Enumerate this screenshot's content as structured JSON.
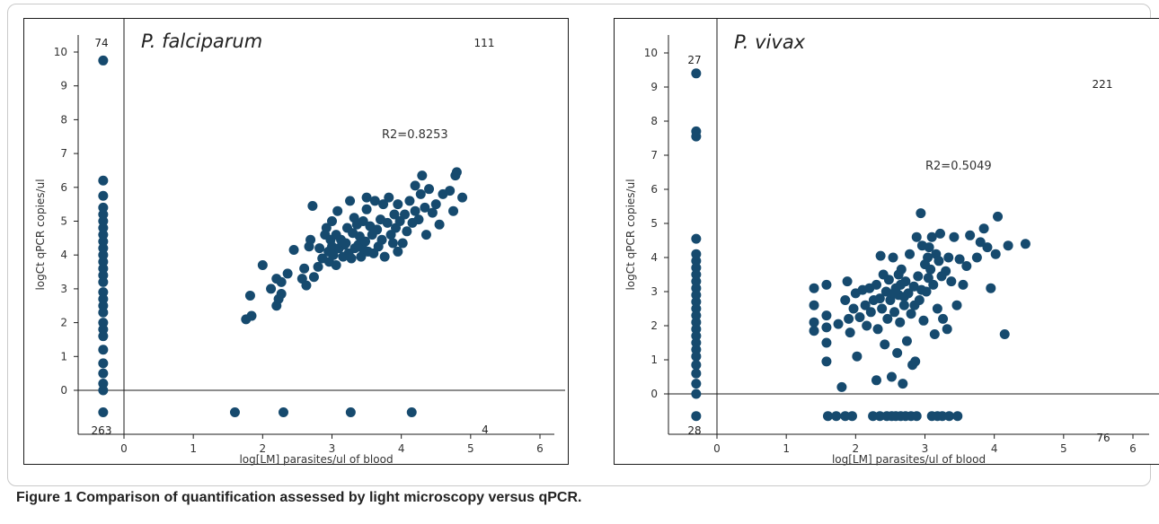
{
  "caption": {
    "label": "Figure 1",
    "text": "Comparison of quantification assessed by light microscopy versus qPCR."
  },
  "colors": {
    "point": "#164a6e",
    "axis": "#1b1b1b"
  },
  "chart_data": [
    {
      "type": "scatter",
      "species": "P. falciparum",
      "xlabel": "log[LM] parasites/ul of blood",
      "ylabel": "logCt qPCR copies/ul",
      "xlim": [
        -0.45,
        6.3
      ],
      "ylim": [
        -1.15,
        10.8
      ],
      "x_ticks": [
        0,
        1,
        2,
        3,
        4,
        5,
        6
      ],
      "y_ticks": [
        0,
        1,
        2,
        3,
        4,
        5,
        6,
        7,
        8,
        9,
        10
      ],
      "r2_label": "R2=0.8253",
      "counts": {
        "top_left": "74",
        "top_right": "111",
        "bottom_left": "263",
        "bottom_right": "4"
      },
      "x_undetected": -0.3,
      "y_undetected": -0.65,
      "points": [
        [
          -0.3,
          9.75
        ],
        [
          -0.3,
          6.2
        ],
        [
          -0.3,
          5.75
        ],
        [
          -0.3,
          5.4
        ],
        [
          -0.3,
          5.2
        ],
        [
          -0.3,
          5.0
        ],
        [
          -0.3,
          4.8
        ],
        [
          -0.3,
          4.6
        ],
        [
          -0.3,
          4.4
        ],
        [
          -0.3,
          4.2
        ],
        [
          -0.3,
          4.0
        ],
        [
          -0.3,
          3.8
        ],
        [
          -0.3,
          3.6
        ],
        [
          -0.3,
          3.4
        ],
        [
          -0.3,
          3.2
        ],
        [
          -0.3,
          2.9
        ],
        [
          -0.3,
          2.7
        ],
        [
          -0.3,
          2.5
        ],
        [
          -0.3,
          2.3
        ],
        [
          -0.3,
          2.0
        ],
        [
          -0.3,
          1.8
        ],
        [
          -0.3,
          1.6
        ],
        [
          -0.3,
          1.2
        ],
        [
          -0.3,
          0.8
        ],
        [
          -0.3,
          0.5
        ],
        [
          -0.3,
          0.2
        ],
        [
          -0.3,
          0.0
        ],
        [
          -0.3,
          -0.65
        ],
        [
          1.6,
          -0.65
        ],
        [
          2.3,
          -0.65
        ],
        [
          3.27,
          -0.65
        ],
        [
          4.15,
          -0.65
        ],
        [
          1.76,
          2.1
        ],
        [
          1.84,
          2.2
        ],
        [
          1.82,
          2.8
        ],
        [
          2.0,
          3.7
        ],
        [
          2.12,
          3.0
        ],
        [
          2.2,
          3.3
        ],
        [
          2.2,
          2.5
        ],
        [
          2.23,
          2.7
        ],
        [
          2.27,
          2.85
        ],
        [
          2.27,
          3.2
        ],
        [
          2.36,
          3.45
        ],
        [
          2.45,
          4.15
        ],
        [
          2.57,
          3.3
        ],
        [
          2.6,
          3.6
        ],
        [
          2.63,
          3.1
        ],
        [
          2.67,
          4.25
        ],
        [
          2.69,
          4.45
        ],
        [
          2.72,
          5.45
        ],
        [
          2.74,
          3.35
        ],
        [
          2.8,
          3.65
        ],
        [
          2.82,
          4.2
        ],
        [
          2.86,
          3.9
        ],
        [
          2.9,
          4.6
        ],
        [
          2.92,
          4.8
        ],
        [
          2.95,
          4.1
        ],
        [
          2.96,
          3.8
        ],
        [
          2.98,
          4.45
        ],
        [
          3.0,
          4.25
        ],
        [
          3.0,
          5.0
        ],
        [
          3.02,
          4.0
        ],
        [
          3.06,
          3.7
        ],
        [
          3.06,
          4.6
        ],
        [
          3.1,
          4.2
        ],
        [
          3.13,
          4.45
        ],
        [
          3.16,
          3.95
        ],
        [
          3.18,
          4.3
        ],
        [
          3.2,
          4.35
        ],
        [
          3.22,
          4.8
        ],
        [
          3.24,
          4.05
        ],
        [
          3.26,
          5.6
        ],
        [
          3.28,
          3.9
        ],
        [
          3.3,
          4.65
        ],
        [
          3.32,
          5.1
        ],
        [
          3.33,
          4.2
        ],
        [
          3.36,
          4.9
        ],
        [
          3.38,
          4.3
        ],
        [
          3.4,
          4.55
        ],
        [
          3.42,
          3.95
        ],
        [
          3.44,
          4.2
        ],
        [
          3.45,
          5.0
        ],
        [
          3.48,
          4.4
        ],
        [
          3.5,
          5.35
        ],
        [
          3.52,
          4.1
        ],
        [
          3.55,
          4.85
        ],
        [
          3.58,
          4.6
        ],
        [
          3.6,
          4.05
        ],
        [
          3.62,
          5.6
        ],
        [
          3.65,
          4.75
        ],
        [
          3.67,
          4.25
        ],
        [
          3.7,
          5.05
        ],
        [
          3.72,
          4.45
        ],
        [
          3.74,
          5.5
        ],
        [
          3.76,
          3.95
        ],
        [
          3.8,
          4.95
        ],
        [
          3.82,
          5.7
        ],
        [
          3.85,
          4.6
        ],
        [
          3.88,
          4.35
        ],
        [
          3.9,
          5.2
        ],
        [
          3.92,
          4.8
        ],
        [
          3.95,
          5.5
        ],
        [
          3.98,
          5.0
        ],
        [
          4.02,
          4.35
        ],
        [
          4.05,
          5.2
        ],
        [
          4.08,
          4.7
        ],
        [
          4.12,
          5.6
        ],
        [
          4.16,
          4.95
        ],
        [
          4.2,
          5.3
        ],
        [
          4.25,
          5.05
        ],
        [
          4.28,
          5.8
        ],
        [
          4.3,
          6.35
        ],
        [
          4.34,
          5.4
        ],
        [
          4.36,
          4.6
        ],
        [
          4.4,
          5.95
        ],
        [
          4.45,
          5.25
        ],
        [
          4.5,
          5.5
        ],
        [
          4.6,
          5.8
        ],
        [
          4.7,
          5.9
        ],
        [
          4.75,
          5.3
        ],
        [
          4.78,
          6.35
        ],
        [
          4.8,
          6.45
        ],
        [
          4.88,
          5.7
        ],
        [
          4.55,
          4.9
        ],
        [
          4.2,
          6.05
        ],
        [
          3.5,
          5.7
        ],
        [
          3.08,
          5.3
        ],
        [
          3.95,
          4.1
        ]
      ]
    },
    {
      "type": "scatter",
      "species": "P. vivax",
      "xlabel": "log[LM] parasites/ul of blood",
      "ylabel": "logCt qPCR copies/ul",
      "xlim": [
        -0.45,
        6.3
      ],
      "ylim": [
        -1.15,
        10.8
      ],
      "x_ticks": [
        0,
        1,
        2,
        3,
        4,
        5,
        6
      ],
      "y_ticks": [
        0,
        1,
        2,
        3,
        4,
        5,
        6,
        7,
        8,
        9,
        10
      ],
      "r2_label": "R2=0.5049",
      "counts": {
        "top_left": "27",
        "top_right": "221",
        "bottom_left": "28",
        "bottom_right": "76"
      },
      "x_undetected": -0.3,
      "y_undetected": -0.65,
      "points": [
        [
          -0.3,
          9.4
        ],
        [
          -0.3,
          7.7
        ],
        [
          -0.3,
          7.55
        ],
        [
          -0.3,
          4.55
        ],
        [
          -0.3,
          4.1
        ],
        [
          -0.3,
          3.9
        ],
        [
          -0.3,
          3.7
        ],
        [
          -0.3,
          3.5
        ],
        [
          -0.3,
          3.3
        ],
        [
          -0.3,
          3.1
        ],
        [
          -0.3,
          2.9
        ],
        [
          -0.3,
          2.7
        ],
        [
          -0.3,
          2.5
        ],
        [
          -0.3,
          2.3
        ],
        [
          -0.3,
          2.1
        ],
        [
          -0.3,
          1.9
        ],
        [
          -0.3,
          1.7
        ],
        [
          -0.3,
          1.5
        ],
        [
          -0.3,
          1.3
        ],
        [
          -0.3,
          1.1
        ],
        [
          -0.3,
          0.85
        ],
        [
          -0.3,
          0.6
        ],
        [
          -0.3,
          0.3
        ],
        [
          -0.3,
          0.0
        ],
        [
          -0.3,
          -0.65
        ],
        [
          1.6,
          -0.65
        ],
        [
          1.72,
          -0.65
        ],
        [
          1.85,
          -0.65
        ],
        [
          1.95,
          -0.65
        ],
        [
          2.25,
          -0.65
        ],
        [
          2.35,
          -0.65
        ],
        [
          2.45,
          -0.65
        ],
        [
          2.52,
          -0.65
        ],
        [
          2.58,
          -0.65
        ],
        [
          2.65,
          -0.65
        ],
        [
          2.72,
          -0.65
        ],
        [
          2.8,
          -0.65
        ],
        [
          2.88,
          -0.65
        ],
        [
          3.1,
          -0.65
        ],
        [
          3.18,
          -0.65
        ],
        [
          3.25,
          -0.65
        ],
        [
          3.35,
          -0.65
        ],
        [
          3.47,
          -0.65
        ],
        [
          1.4,
          3.1
        ],
        [
          1.4,
          2.6
        ],
        [
          1.4,
          2.1
        ],
        [
          1.4,
          1.85
        ],
        [
          1.58,
          3.2
        ],
        [
          1.58,
          2.3
        ],
        [
          1.58,
          1.95
        ],
        [
          1.58,
          1.5
        ],
        [
          1.58,
          0.95
        ],
        [
          1.75,
          2.05
        ],
        [
          1.8,
          0.2
        ],
        [
          1.85,
          2.75
        ],
        [
          1.88,
          3.3
        ],
        [
          1.9,
          2.2
        ],
        [
          1.92,
          1.8
        ],
        [
          1.97,
          2.5
        ],
        [
          2.0,
          2.95
        ],
        [
          2.02,
          1.1
        ],
        [
          2.06,
          2.25
        ],
        [
          2.1,
          3.05
        ],
        [
          2.14,
          2.6
        ],
        [
          2.16,
          2.0
        ],
        [
          2.2,
          3.1
        ],
        [
          2.22,
          2.4
        ],
        [
          2.26,
          2.75
        ],
        [
          2.3,
          3.2
        ],
        [
          2.3,
          0.4
        ],
        [
          2.32,
          1.9
        ],
        [
          2.36,
          4.05
        ],
        [
          2.38,
          2.5
        ],
        [
          2.42,
          1.45
        ],
        [
          2.44,
          3.0
        ],
        [
          2.46,
          2.2
        ],
        [
          2.48,
          3.35
        ],
        [
          2.5,
          2.75
        ],
        [
          2.52,
          0.5
        ],
        [
          2.54,
          4.0
        ],
        [
          2.56,
          2.4
        ],
        [
          2.58,
          3.1
        ],
        [
          2.6,
          1.2
        ],
        [
          2.62,
          3.5
        ],
        [
          2.62,
          2.9
        ],
        [
          2.64,
          2.1
        ],
        [
          2.66,
          3.65
        ],
        [
          2.68,
          0.3
        ],
        [
          2.7,
          2.6
        ],
        [
          2.72,
          3.3
        ],
        [
          2.74,
          1.55
        ],
        [
          2.76,
          2.95
        ],
        [
          2.78,
          4.1
        ],
        [
          2.8,
          2.35
        ],
        [
          2.82,
          0.85
        ],
        [
          2.84,
          3.15
        ],
        [
          2.86,
          0.95
        ],
        [
          2.88,
          4.6
        ],
        [
          2.9,
          3.45
        ],
        [
          2.92,
          2.75
        ],
        [
          2.94,
          5.3
        ],
        [
          2.96,
          4.35
        ],
        [
          2.98,
          2.15
        ],
        [
          3.0,
          3.8
        ],
        [
          3.02,
          3.0
        ],
        [
          3.04,
          4.0
        ],
        [
          3.06,
          4.3
        ],
        [
          3.08,
          3.65
        ],
        [
          3.1,
          4.6
        ],
        [
          3.12,
          3.2
        ],
        [
          3.14,
          1.75
        ],
        [
          3.16,
          4.1
        ],
        [
          3.18,
          2.5
        ],
        [
          3.2,
          3.9
        ],
        [
          3.22,
          4.7
        ],
        [
          3.24,
          3.45
        ],
        [
          3.26,
          2.2
        ],
        [
          3.3,
          3.6
        ],
        [
          3.32,
          1.9
        ],
        [
          3.34,
          4.0
        ],
        [
          3.38,
          3.3
        ],
        [
          3.42,
          4.6
        ],
        [
          3.46,
          2.6
        ],
        [
          3.5,
          3.95
        ],
        [
          3.55,
          3.2
        ],
        [
          3.6,
          3.75
        ],
        [
          3.65,
          4.65
        ],
        [
          3.75,
          4.0
        ],
        [
          3.8,
          4.45
        ],
        [
          3.85,
          4.85
        ],
        [
          3.9,
          4.3
        ],
        [
          3.95,
          3.1
        ],
        [
          4.02,
          4.1
        ],
        [
          4.05,
          5.2
        ],
        [
          4.15,
          1.75
        ],
        [
          4.2,
          4.35
        ],
        [
          4.45,
          4.4
        ],
        [
          2.4,
          3.5
        ],
        [
          2.7,
          2.85
        ],
        [
          2.95,
          3.05
        ],
        [
          2.55,
          2.95
        ],
        [
          2.85,
          2.6
        ],
        [
          3.05,
          3.4
        ],
        [
          2.35,
          2.8
        ],
        [
          2.65,
          3.2
        ]
      ]
    }
  ]
}
